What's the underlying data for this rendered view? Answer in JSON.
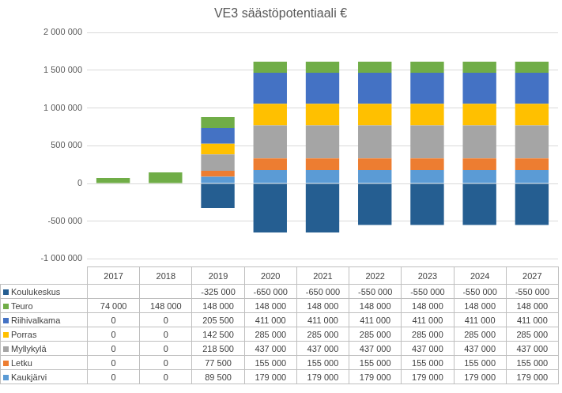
{
  "chart_data": {
    "type": "bar",
    "title": "VE3 säästöpotentiaali €",
    "categories": [
      "2017",
      "2018",
      "2019",
      "2020",
      "2021",
      "2022",
      "2023",
      "2024",
      "2027"
    ],
    "stacked": true,
    "grid": true,
    "tick_labels": "y",
    "ylim": [
      -1000000,
      2000000
    ],
    "yticks": [
      {
        "value": -1000000,
        "label": "-1 000 000"
      },
      {
        "value": -500000,
        "label": "-500 000"
      },
      0,
      {
        "value": 500000,
        "label": "500 000"
      },
      {
        "value": 1000000,
        "label": "1 000 000"
      },
      {
        "value": 1500000,
        "label": "1 500 000"
      },
      {
        "value": 2000000,
        "label": "2 000 000"
      }
    ],
    "series": [
      {
        "name": "Koulukeskus",
        "color": "#255E91",
        "values": [
          null,
          null,
          -325000,
          -650000,
          -650000,
          -550000,
          -550000,
          -550000,
          -550000
        ],
        "value_labels": [
          null,
          null,
          "-325 000",
          "-650 000",
          "-650 000",
          "-550 000",
          "-550 000",
          "-550 000",
          "-550 000"
        ]
      },
      {
        "name": "Teuro",
        "color": "#70AD47",
        "values": [
          74000,
          148000,
          148000,
          148000,
          148000,
          148000,
          148000,
          148000,
          148000
        ],
        "value_labels": [
          "74 000",
          "148 000",
          "148 000",
          "148 000",
          "148 000",
          "148 000",
          "148 000",
          "148 000",
          "148 000"
        ]
      },
      {
        "name": "Riihivalkama",
        "color": "#4472C4",
        "values": [
          0,
          0,
          205500,
          411000,
          411000,
          411000,
          411000,
          411000,
          411000
        ],
        "value_labels": [
          "0",
          "0",
          "205 500",
          "411 000",
          "411 000",
          "411 000",
          "411 000",
          "411 000",
          "411 000"
        ]
      },
      {
        "name": "Porras",
        "color": "#FFC000",
        "values": [
          0,
          0,
          142500,
          285000,
          285000,
          285000,
          285000,
          285000,
          285000
        ],
        "value_labels": [
          "0",
          "0",
          "142 500",
          "285 000",
          "285 000",
          "285 000",
          "285 000",
          "285 000",
          "285 000"
        ]
      },
      {
        "name": "Myllykylä",
        "color": "#A5A5A5",
        "values": [
          0,
          0,
          218500,
          437000,
          437000,
          437000,
          437000,
          437000,
          437000
        ],
        "value_labels": [
          "0",
          "0",
          "218 500",
          "437 000",
          "437 000",
          "437 000",
          "437 000",
          "437 000",
          "437 000"
        ]
      },
      {
        "name": "Letku",
        "color": "#ED7D31",
        "values": [
          0,
          0,
          77500,
          155000,
          155000,
          155000,
          155000,
          155000,
          155000
        ],
        "value_labels": [
          "0",
          "0",
          "77 500",
          "155 000",
          "155 000",
          "155 000",
          "155 000",
          "155 000",
          "155 000"
        ]
      },
      {
        "name": "Kaukjärvi",
        "color": "#5B9BD5",
        "values": [
          0,
          0,
          89500,
          179000,
          179000,
          179000,
          179000,
          179000,
          179000
        ],
        "value_labels": [
          "0",
          "0",
          "89 500",
          "179 000",
          "179 000",
          "179 000",
          "179 000",
          "179 000",
          "179 000"
        ]
      }
    ]
  }
}
